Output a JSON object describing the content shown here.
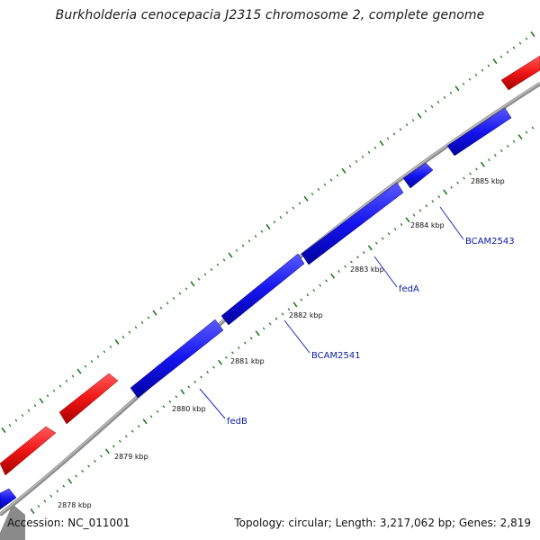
{
  "title": "Burkholderia cenocepacia J2315 chromosome 2, complete genome",
  "footer": {
    "accession": "Accession: NC_011001",
    "summary": "Topology: circular; Length: 3,217,062 bp; Genes: 2,819"
  },
  "colors": {
    "forward_gene": "#f01818",
    "reverse_gene": "#1515ee",
    "backbone": "#8e8e8e",
    "tick": "#1d7a1d",
    "label_line": "#1e2fc0",
    "label_text": "#0a1aa6"
  },
  "kbp_labels": [
    "2878 kbp",
    "2879 kbp",
    "2880 kbp",
    "2881 kbp",
    "2882 kbp",
    "2883 kbp",
    "2884 kbp",
    "2885 kbp"
  ],
  "gene_labels": [
    "fedB",
    "BCAM2541",
    "fedA",
    "BCAM2543"
  ]
}
